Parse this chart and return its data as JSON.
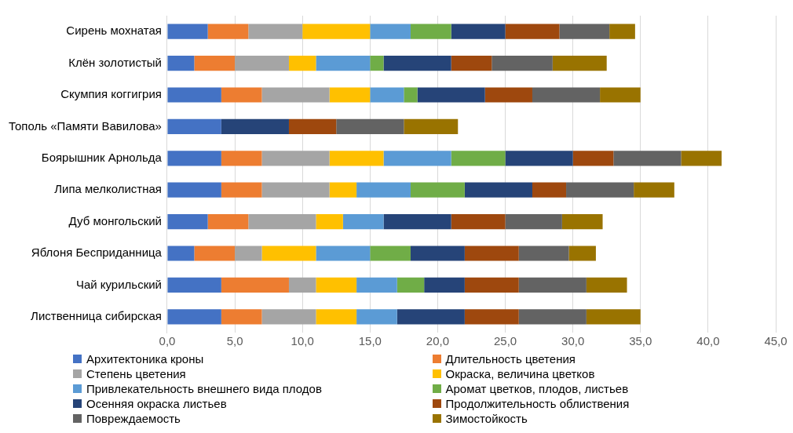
{
  "chart_data": {
    "type": "bar",
    "orientation": "horizontal",
    "stacked": true,
    "categories": [
      "Сирень мохнатая",
      "Клён золотистый",
      "Скумпия коггигрия",
      "Тополь «Памяти Вавилова»",
      "Боярышник Арнольда",
      "Липа мелколистная",
      "Дуб монгольский",
      "Яблоня Бесприданница",
      "Чай курильский",
      "Лиственница сибирская"
    ],
    "series": [
      {
        "name": "Архитектоника кроны",
        "color": "#4472c4",
        "values": [
          3,
          2,
          4,
          4,
          4,
          4,
          3,
          2,
          4,
          4
        ]
      },
      {
        "name": "Длительность цветения",
        "color": "#ed7d31",
        "values": [
          3,
          3,
          3,
          0,
          3,
          3,
          3,
          3,
          5,
          3
        ]
      },
      {
        "name": "Степень цветения",
        "color": "#a5a5a5",
        "values": [
          4,
          4,
          5,
          0,
          5,
          5,
          5,
          2,
          2,
          4
        ]
      },
      {
        "name": "Окраска, величина цветков",
        "color": "#ffc000",
        "values": [
          5,
          2,
          3,
          0,
          4,
          2,
          2,
          4,
          3,
          3
        ]
      },
      {
        "name": "Привлекательность внешнего вида плодов",
        "color": "#5b9bd5",
        "values": [
          3,
          4,
          2.5,
          0,
          5,
          4,
          3,
          4,
          3,
          3
        ]
      },
      {
        "name": "Аромат цветков, плодов, листьев",
        "color": "#70ad47",
        "values": [
          3,
          1,
          1,
          0,
          4,
          4,
          0,
          3,
          2,
          0
        ]
      },
      {
        "name": "Осенняя окраска листьев",
        "color": "#264478",
        "values": [
          4,
          5,
          5,
          5,
          5,
          5,
          5,
          4,
          3,
          5
        ]
      },
      {
        "name": "Продолжительность облиствения",
        "color": "#9e480e",
        "values": [
          4,
          3,
          3.5,
          3.5,
          3,
          2.5,
          4,
          4,
          4,
          4
        ]
      },
      {
        "name": "Повреждаемость",
        "color": "#636363",
        "values": [
          3.7,
          4.5,
          5,
          5,
          5,
          5,
          4.2,
          3.7,
          5,
          5
        ]
      },
      {
        "name": "Зимостойкость",
        "color": "#997300",
        "values": [
          1.9,
          4,
          3,
          4,
          3,
          3,
          3,
          2,
          3,
          4
        ]
      }
    ],
    "xlim": [
      0,
      45
    ],
    "xticks": [
      {
        "value": 0,
        "label": "0,0"
      },
      {
        "value": 5,
        "label": "5,0"
      },
      {
        "value": 10,
        "label": "10,0"
      },
      {
        "value": 15,
        "label": "15,0"
      },
      {
        "value": 20,
        "label": "20,0"
      },
      {
        "value": 25,
        "label": "25,0"
      },
      {
        "value": 30,
        "label": "30,0"
      },
      {
        "value": 35,
        "label": "35,0"
      },
      {
        "value": 40,
        "label": "40,0"
      },
      {
        "value": 45,
        "label": "45,0"
      }
    ],
    "grid": "x",
    "legend": "bottom"
  }
}
